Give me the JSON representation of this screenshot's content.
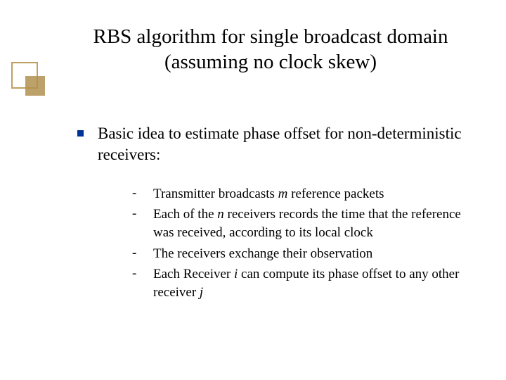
{
  "colors": {
    "background": "#ffffff",
    "text": "#000000",
    "bullet_square": "#003399",
    "decoration_outline": "#c0a060",
    "decoration_fill": "#b09050"
  },
  "typography": {
    "title_fontsize": 29,
    "body_l1_fontsize": 23,
    "body_l2_fontsize": 19,
    "font_family": "Times New Roman"
  },
  "title": "RBS algorithm for single broadcast domain (assuming no clock skew)",
  "body": {
    "main": "Basic idea to estimate phase offset for non-deterministic receivers:",
    "subitems": [
      {
        "pre": "Transmitter broadcasts ",
        "em": "m",
        "post": " reference packets"
      },
      {
        "pre": "Each of the ",
        "em": "n",
        "post": " receivers records the time that the reference was received, according to its local clock"
      },
      {
        "pre": "The receivers exchange their observation",
        "em": "",
        "post": ""
      },
      {
        "pre": "Each Receiver ",
        "em": "i",
        "post_pre": " can compute its phase offset to any other receiver ",
        "em2": "j",
        "post": ""
      }
    ]
  },
  "bullet_shapes": {
    "level1": "filled-square",
    "level2": "dash"
  }
}
